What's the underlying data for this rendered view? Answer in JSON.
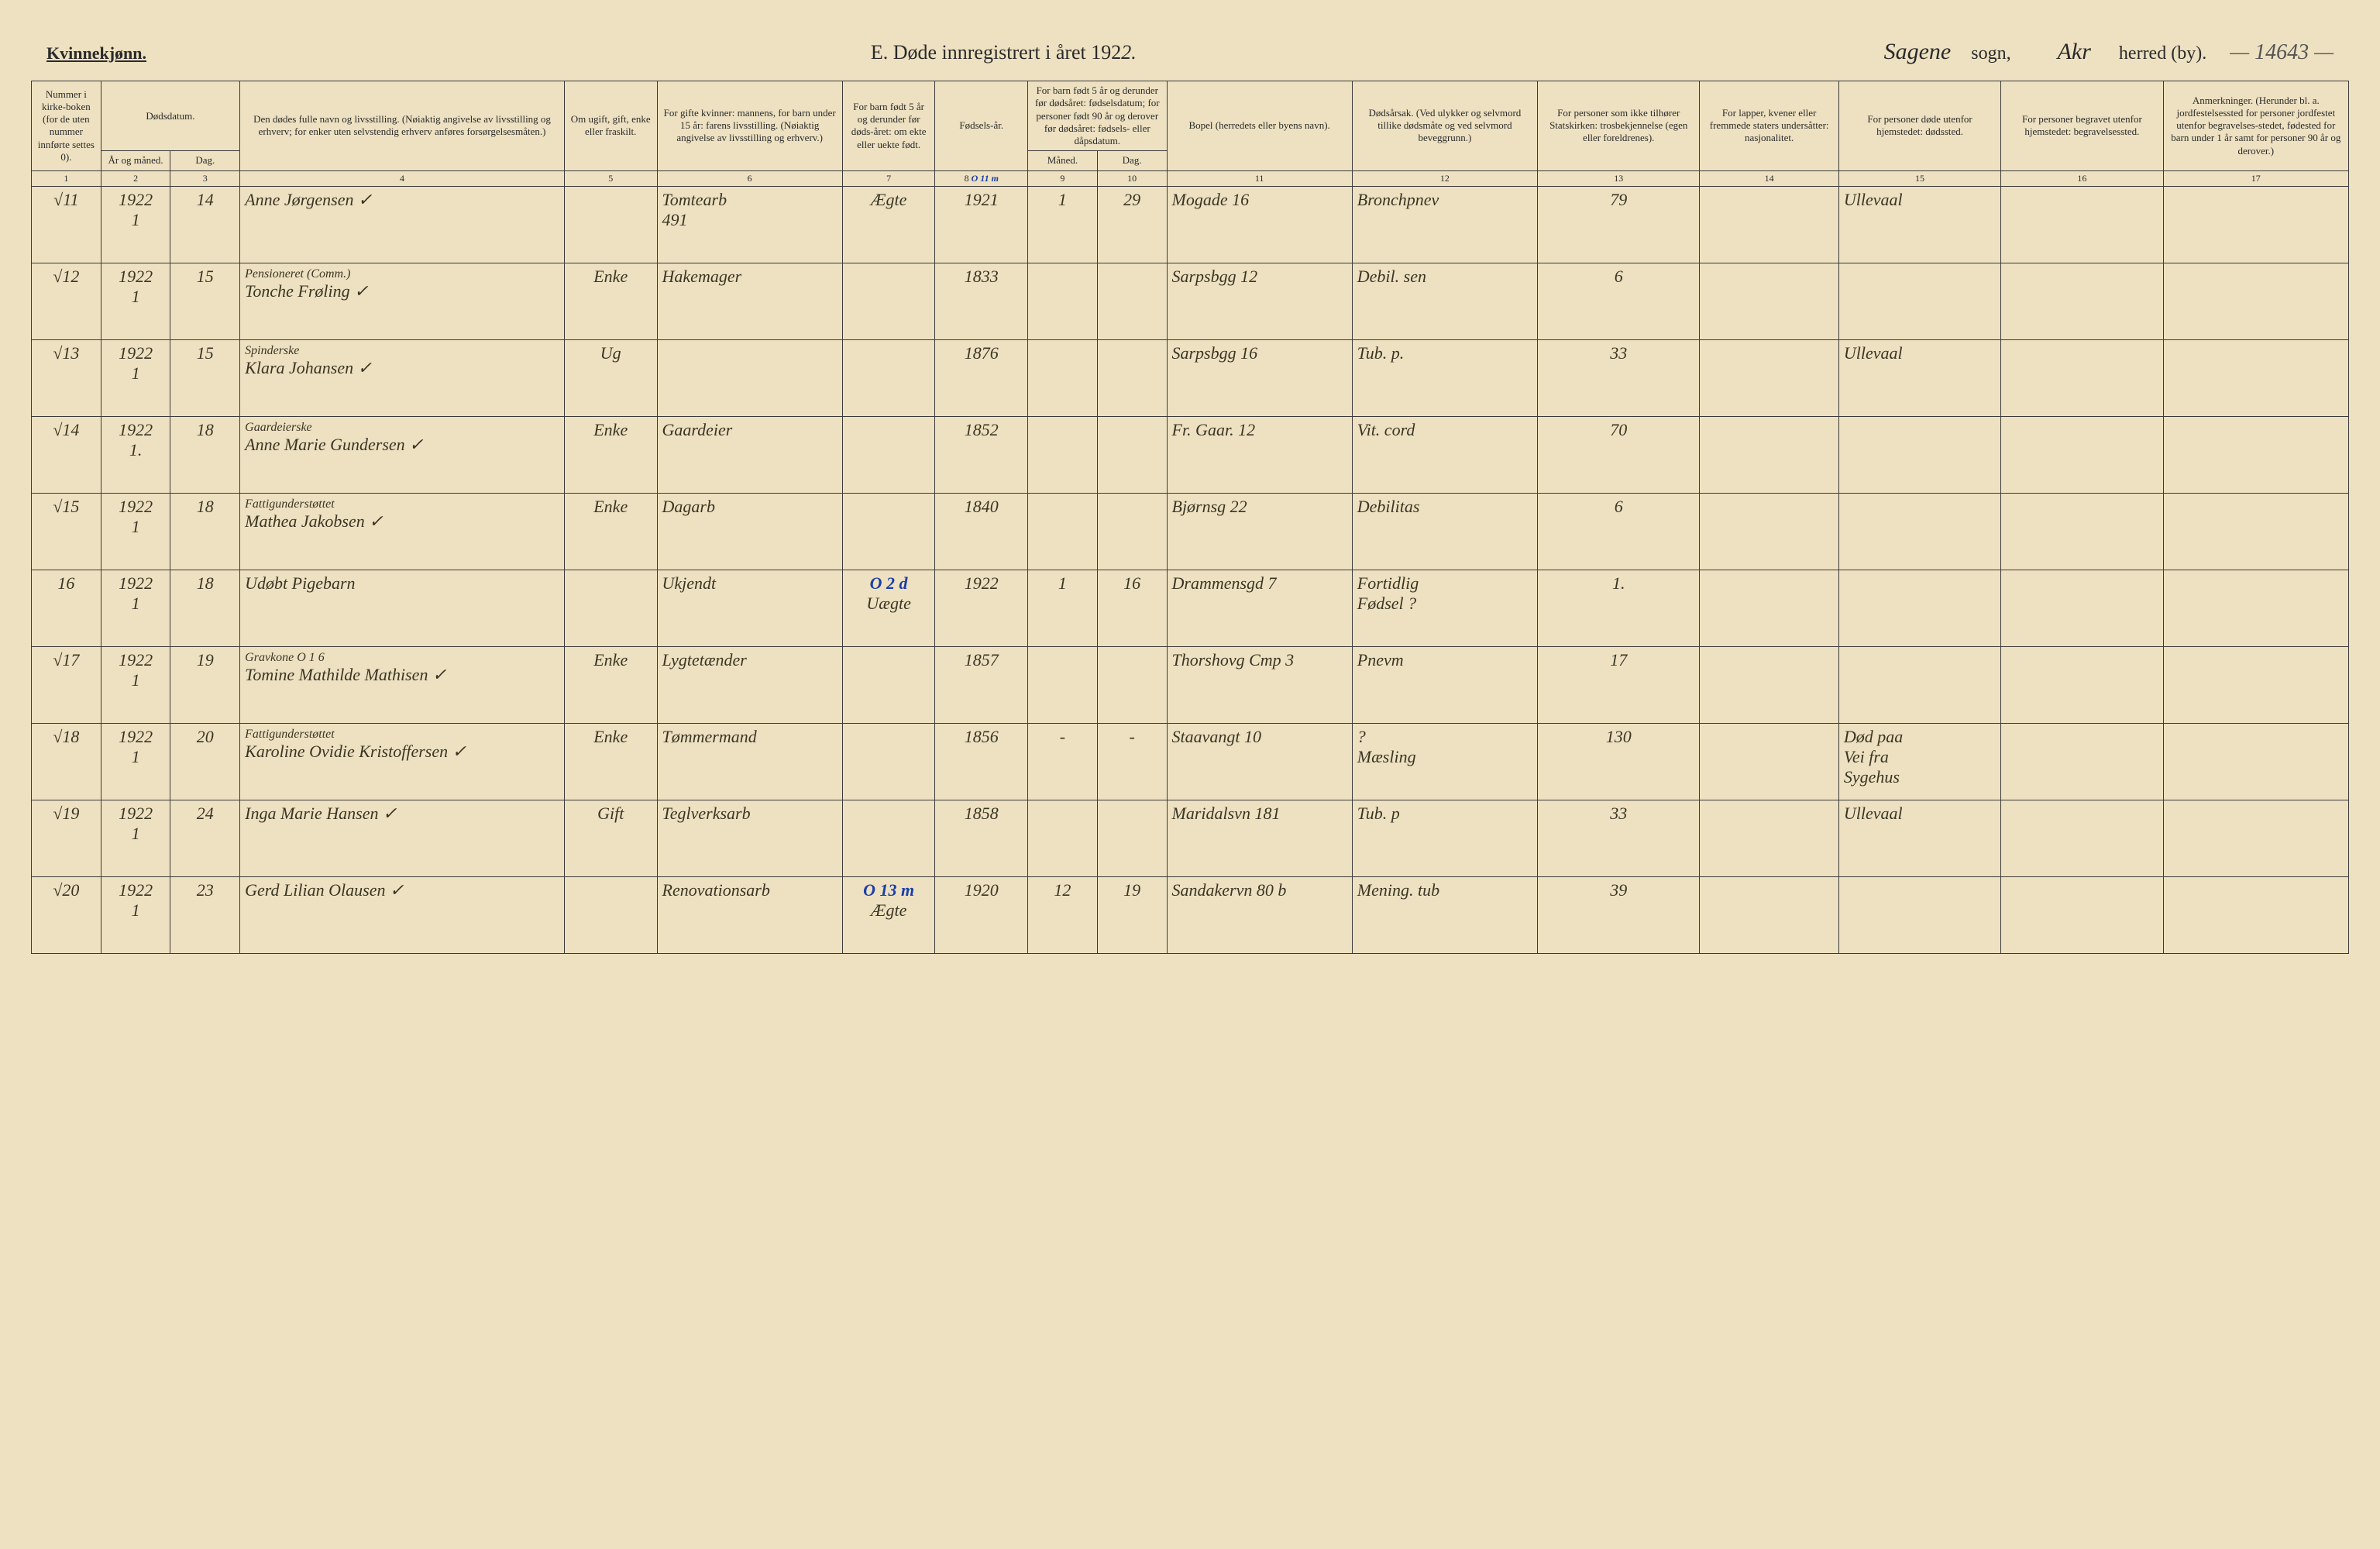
{
  "page": {
    "gender_heading": "Kvinnekjønn.",
    "title_prefix": "E.   Døde innregistrert i året 192",
    "title_year_hw": "2.",
    "sogn_hw": "Sagene",
    "sogn_label": "sogn,",
    "herred_hw": "Akr",
    "herred_label": "herred (by).",
    "page_number": "— 14643 —"
  },
  "colors": {
    "paper": "#ede1c1",
    "ink": "#2a2a2a",
    "handwriting": "#3a3524",
    "blue_pencil": "#1b3ea8",
    "rule": "#3a3a3a"
  },
  "columns": {
    "col1": "Nummer i kirke-boken (for de uten nummer innførte settes 0).",
    "col2_top": "Dødsdatum.",
    "col2a": "År og måned.",
    "col2b": "Dag.",
    "col4": "Den dødes fulle navn og livsstilling. (Nøiaktig angivelse av livsstilling og erhverv; for enker uten selvstendig erhverv anføres forsørgelsesmåten.)",
    "col5": "Om ugift, gift, enke eller fraskilt.",
    "col6": "For gifte kvinner: mannens, for barn under 15 år: farens livsstilling. (Nøiaktig angivelse av livsstilling og erhverv.)",
    "col7": "For barn født 5 år og derunder før døds-året: om ekte eller uekte født.",
    "col8": "Fødsels-år.",
    "col9_top": "For barn født 5 år og derunder før dødsåret: fødselsdatum; for personer født 90 år og derover før dødsåret: fødsels- eller dåpsdatum.",
    "col9a": "Måned.",
    "col9b": "Dag.",
    "col11": "Bopel (herredets eller byens navn).",
    "col12": "Dødsårsak. (Ved ulykker og selvmord tillike dødsmåte og ved selvmord beveggrunn.)",
    "col13": "For personer som ikke tilhører Statskirken: trosbekjennelse (egen eller foreldrenes).",
    "col14": "For lapper, kvener eller fremmede staters undersåtter: nasjonalitet.",
    "col15": "For personer døde utenfor hjemstedet: dødssted.",
    "col16": "For personer begravet utenfor hjemstedet: begravelsessted.",
    "col17": "Anmerkninger. (Herunder bl. a. jordfestelsessted for personer jordfestet utenfor begravelses-stedet, fødested for barn under 1 år samt for personer 90 år og derover.)"
  },
  "colnums": [
    "1",
    "2",
    "3",
    "4",
    "5",
    "6",
    "7",
    "8",
    "9",
    "10",
    "11",
    "12",
    "13",
    "14",
    "15",
    "16",
    "17"
  ],
  "colnum_note": "O 11 m",
  "rows": [
    {
      "n": "√11",
      "year": "1922\n1",
      "day": "14",
      "name": "Anne Jørgensen  ✓",
      "status": "",
      "father": "Tomtearb\n491",
      "ekte": "Ægte",
      "faar": "1921",
      "fm": "1",
      "fd": "29",
      "bopel": "Mogade 16",
      "cause": "Bronchpnev",
      "c13": "79",
      "c14": "",
      "c15": "Ullevaal",
      "c16": "",
      "c17": ""
    },
    {
      "n": "√12",
      "year": "1922\n1",
      "day": "15",
      "name_top": "Pensioneret (Comm.)",
      "name": "Tonche Frøling  ✓",
      "status": "Enke",
      "father": "Hakemager",
      "ekte": "",
      "faar": "1833",
      "fm": "",
      "fd": "",
      "bopel": "Sarpsbgg 12",
      "cause": "Debil. sen",
      "c13": "6",
      "c14": "",
      "c15": "",
      "c16": "",
      "c17": ""
    },
    {
      "n": "√13",
      "year": "1922\n1",
      "day": "15",
      "name_top": "Spinderske",
      "name": "Klara Johansen  ✓",
      "status": "Ug",
      "father": "",
      "ekte": "",
      "faar": "1876",
      "fm": "",
      "fd": "",
      "bopel": "Sarpsbgg 16",
      "cause": "Tub. p.",
      "c13": "33",
      "c14": "",
      "c15": "Ullevaal",
      "c16": "",
      "c17": ""
    },
    {
      "n": "√14",
      "year": "1922\n1.",
      "day": "18",
      "name_top": "Gaardeierske",
      "name": "Anne Marie Gundersen ✓",
      "status": "Enke",
      "father": "Gaardeier",
      "ekte": "",
      "faar": "1852",
      "fm": "",
      "fd": "",
      "bopel": "Fr. Gaar. 12",
      "cause": "Vit. cord",
      "c13": "70",
      "c14": "",
      "c15": "",
      "c16": "",
      "c17": ""
    },
    {
      "n": "√15",
      "year": "1922\n1",
      "day": "18",
      "name_top": "Fattigunderstøttet",
      "name": "Mathea Jakobsen ✓",
      "status": "Enke",
      "father": "Dagarb",
      "ekte": "",
      "faar": "1840",
      "fm": "",
      "fd": "",
      "bopel": "Bjørnsg 22",
      "cause": "Debilitas",
      "c13": "6",
      "c14": "",
      "c15": "",
      "c16": "",
      "c17": ""
    },
    {
      "n": "16",
      "year": "1922\n1",
      "day": "18",
      "name": "Udøbt Pigebarn",
      "status": "",
      "father": "Ukjendt",
      "ekte": "Uægte",
      "ekte_note": "O 2 d",
      "faar": "1922",
      "fm": "1",
      "fd": "16",
      "bopel": "Drammensgd 7",
      "cause": "Fortidlig\nFødsel ?",
      "c13": "1.",
      "c14": "",
      "c15": "",
      "c16": "",
      "c17": ""
    },
    {
      "n": "√17",
      "year": "1922\n1",
      "day": "19",
      "name_top": "Gravkone O 1 6",
      "name": "Tomine Mathilde Mathisen ✓",
      "status": "Enke",
      "father": "Lygtetænder",
      "ekte": "",
      "faar": "1857",
      "fm": "",
      "fd": "",
      "bopel": "Thorshovg Cmp 3",
      "cause": "Pnevm",
      "c13": "17",
      "c14": "",
      "c15": "",
      "c16": "",
      "c17": ""
    },
    {
      "n": "√18",
      "year": "1922\n1",
      "day": "20",
      "name_top": "Fattigunderstøttet",
      "name": "Karoline Ovidie Kristoffersen ✓",
      "status": "Enke",
      "father": "Tømmermand",
      "ekte": "",
      "faar": "1856",
      "fm": "-",
      "fd": "-",
      "bopel": "Staavangt 10",
      "cause": "?\nMæsling",
      "c13": "130",
      "c14": "",
      "c15": "Død paa\nVei fra\nSygehus",
      "c16": "",
      "c17": ""
    },
    {
      "n": "√19",
      "year": "1922\n1",
      "day": "24",
      "name": "Inga Marie Hansen  ✓",
      "status": "Gift",
      "father": "Teglverksarb",
      "ekte": "",
      "faar": "1858",
      "fm": "",
      "fd": "",
      "bopel": "Maridalsvn 181",
      "cause": "Tub. p",
      "c13": "33",
      "c14": "",
      "c15": "Ullevaal",
      "c16": "",
      "c17": ""
    },
    {
      "n": "√20",
      "year": "1922\n1",
      "day": "23",
      "name": "Gerd Lilian Olausen ✓",
      "status": "",
      "father": "Renovationsarb",
      "ekte": "Ægte",
      "ekte_note": "O 13 m",
      "faar": "1920",
      "fm": "12",
      "fd": "19",
      "bopel": "Sandakervn 80 b",
      "cause": "Mening. tub",
      "c13": "39",
      "c14": "",
      "c15": "",
      "c16": "",
      "c17": ""
    }
  ]
}
